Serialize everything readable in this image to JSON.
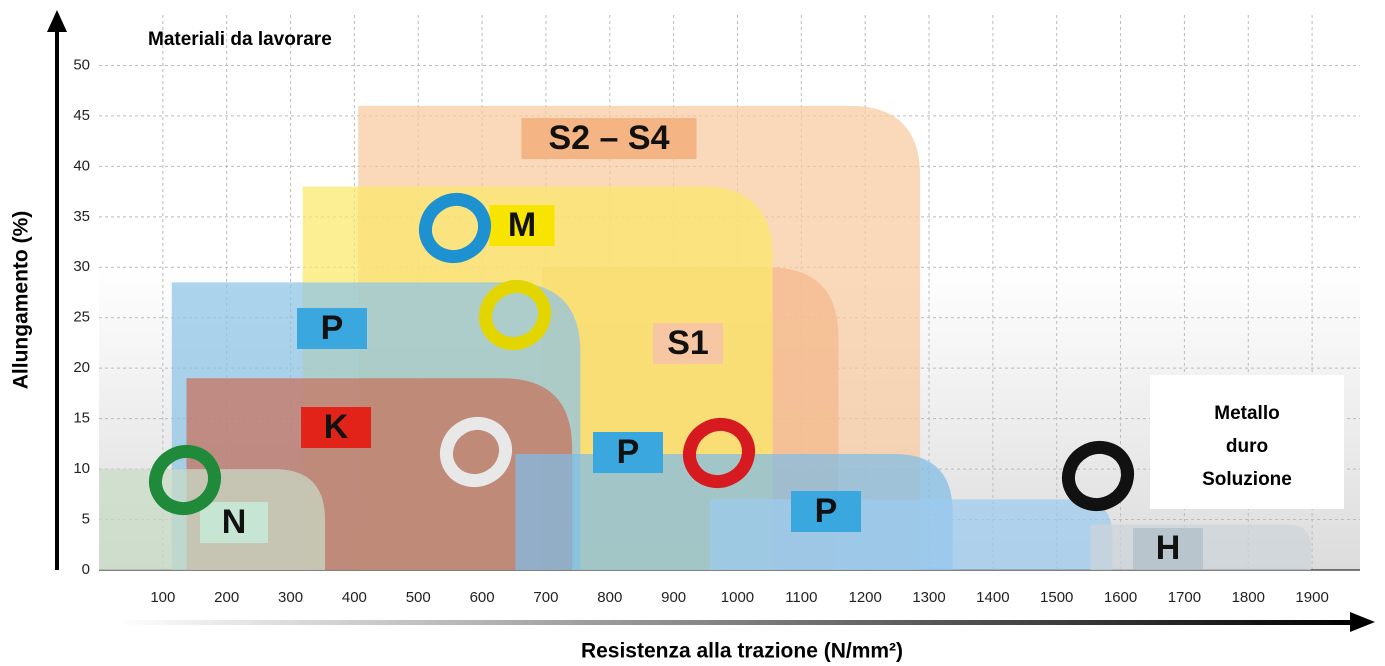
{
  "chart_data": {
    "type": "region",
    "title": "Materiali da lavorare",
    "x_label": "Resistenza alla trazione (N/mm²)",
    "y_label": "Allungamento (%)",
    "note": [
      "Metallo",
      "duro",
      "Soluzione"
    ],
    "xlim": [
      0,
      1975
    ],
    "ylim": [
      0,
      55
    ],
    "xticks": [
      100,
      200,
      300,
      400,
      500,
      600,
      700,
      800,
      900,
      1000,
      1100,
      1200,
      1300,
      1400,
      1500,
      1600,
      1700,
      1800,
      1900
    ],
    "yticks": [
      0,
      5,
      10,
      15,
      20,
      25,
      30,
      35,
      40,
      45,
      50
    ],
    "grid": true,
    "regions": [
      {
        "name": "S2 – S4",
        "color": "#f8c9a0",
        "label_color": "#f4b483",
        "x0": 406,
        "x1": 1286,
        "y": 46
      },
      {
        "name": "S1",
        "color": "#f4b98a",
        "label_color": "#f6c7a2",
        "x0": 694,
        "x1": 1158,
        "y": 30
      },
      {
        "name": "M",
        "color": "#fbe96a",
        "label_color": "#f7e400",
        "x0": 319,
        "x1": 1055,
        "y": 38
      },
      {
        "name": "P",
        "color": "#8ec3e6",
        "label_color": "#3aa7de",
        "x0": 114,
        "x1": 754,
        "y": 28.5
      },
      {
        "name": "K",
        "color": "#c8705a",
        "label_color": "#e2231a",
        "x0": 137,
        "x1": 741,
        "y": 19
      },
      {
        "name": "P",
        "color": "#7fbde6",
        "label_color": "#3aa7de",
        "x0": 652,
        "x1": 1337,
        "y": 11.5
      },
      {
        "name": "P",
        "color": "#9ccbef",
        "label_color": "#3aa7de",
        "x0": 957,
        "x1": 1587,
        "y": 7
      },
      {
        "name": "N",
        "color": "#c9dcc6",
        "label_color": "#c6e5d2",
        "x0": 0,
        "x1": 354,
        "y": 10
      },
      {
        "name": "H",
        "color": "#ccd4da",
        "label_color": "#b9c5cc",
        "x0": 1553,
        "x1": 1898,
        "y": 4.5
      }
    ]
  }
}
